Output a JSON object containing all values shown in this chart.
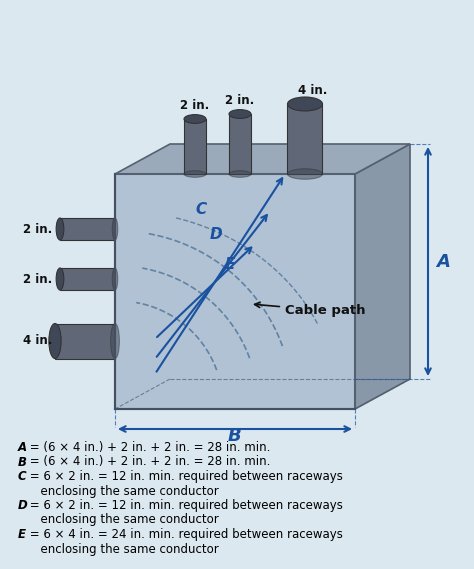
{
  "bg_color": "#dce8f0",
  "box_bg": "#b8c8d8",
  "box_face_color": "#c8d8e8",
  "box_top_color": "#a8b8c8",
  "box_right_color": "#98a8b8",
  "pipe_color": "#606878",
  "pipe_dark": "#404858",
  "arrow_color": "#1a52a0",
  "dim_color": "#1a52a0",
  "text_color": "#000000",
  "label_color": "#1a52a0",
  "title_text": "",
  "formula_lines": [
    "A = (6 × 4 in.) + 2 in. + 2 in. = 28 in. min.",
    "B = (6 × 4 in.) + 2 in. + 2 in. = 28 in. min.",
    "C = 6 × 2 in. = 12 in. min. required between raceways",
    "      enclosing the same conductor",
    "D = 6 × 2 in. = 12 in. min. required between raceways",
    "      enclosing the same conductor",
    "E = 6 × 4 in. = 24 in. min. required between raceways",
    "      enclosing the same conductor"
  ],
  "top_pipe_labels": [
    "2 in.",
    "2 in.",
    "4 in."
  ],
  "left_pipe_labels": [
    "2 in.",
    "2 in.",
    "4 in."
  ],
  "cable_path_label": "Cable path",
  "dim_A_label": "A",
  "dim_B_label": "B"
}
